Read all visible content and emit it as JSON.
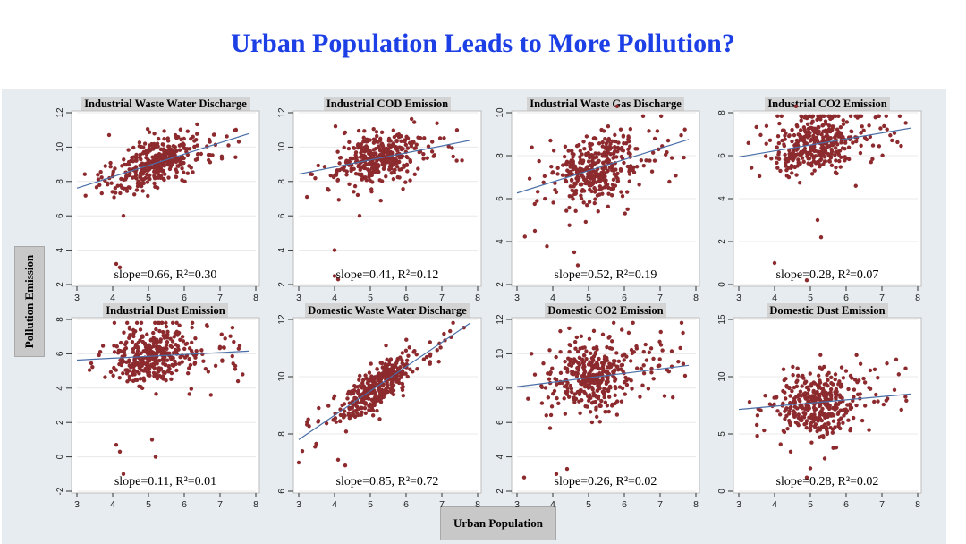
{
  "slide": {
    "title": "Urban Population Leads to More Pollution?"
  },
  "chart_data": [
    {
      "type": "scatter",
      "title": "Industrial Waste Water Discharge",
      "annotation": "slope=0.66, R²=0.30",
      "xlim": [
        3,
        8
      ],
      "xticks": [
        3,
        4,
        5,
        6,
        7,
        8
      ],
      "ylim": [
        2,
        12
      ],
      "yticks": [
        2,
        4,
        6,
        8,
        10,
        12
      ],
      "fit": {
        "slope": 0.66,
        "intercept": 5.63
      },
      "x_center": 5.2,
      "y_center": 9.0,
      "noise": 0.95,
      "outliers": [
        [
          4.1,
          3.2
        ],
        [
          4.2,
          3.0
        ],
        [
          3.9,
          10.7
        ],
        [
          4.3,
          6.0
        ]
      ],
      "color": "#8c2a2e",
      "line_color": "#4a6fa8"
    },
    {
      "type": "scatter",
      "title": "Industrial COD Emission",
      "annotation": "slope=0.41, R²=0.12",
      "xlim": [
        3,
        8
      ],
      "xticks": [
        3,
        4,
        5,
        6,
        7,
        8
      ],
      "ylim": [
        2,
        12
      ],
      "yticks": [
        2,
        4,
        6,
        8,
        10,
        12
      ],
      "fit": {
        "slope": 0.41,
        "intercept": 7.2
      },
      "x_center": 5.2,
      "y_center": 9.3,
      "noise": 1.0,
      "outliers": [
        [
          4.0,
          2.5
        ],
        [
          4.0,
          4.0
        ],
        [
          4.1,
          2.3
        ],
        [
          4.7,
          6.0
        ]
      ],
      "color": "#8c2a2e",
      "line_color": "#4a6fa8"
    },
    {
      "type": "scatter",
      "title": "Industrial Waste Gas Discharge",
      "annotation": "slope=0.52, R²=0.19",
      "xlim": [
        3,
        8
      ],
      "xticks": [
        3,
        4,
        5,
        6,
        7,
        8
      ],
      "ylim": [
        2,
        10
      ],
      "yticks": [
        2,
        4,
        6,
        8,
        10
      ],
      "fit": {
        "slope": 0.52,
        "intercept": 4.7
      },
      "x_center": 5.2,
      "y_center": 7.4,
      "noise": 1.1,
      "outliers": [
        [
          4.6,
          3.5
        ],
        [
          4.7,
          2.9
        ],
        [
          5.8,
          10.3
        ],
        [
          3.5,
          4.5
        ]
      ],
      "color": "#8c2a2e",
      "line_color": "#4a6fa8"
    },
    {
      "type": "scatter",
      "title": "Industrial CO2 Emission",
      "annotation": "slope=0.28, R²=0.07",
      "xlim": [
        3,
        8
      ],
      "xticks": [
        3,
        4,
        5,
        6,
        7,
        8
      ],
      "ylim": [
        0,
        8
      ],
      "yticks": [
        0,
        2,
        4,
        6,
        8
      ],
      "fit": {
        "slope": 0.28,
        "intercept": 5.1
      },
      "x_center": 5.2,
      "y_center": 6.5,
      "noise": 0.9,
      "outliers": [
        [
          4.0,
          1.0
        ],
        [
          5.2,
          3.0
        ],
        [
          5.3,
          2.2
        ],
        [
          4.9,
          0.2
        ],
        [
          4.6,
          8.3
        ]
      ],
      "color": "#8c2a2e",
      "line_color": "#4a6fa8"
    },
    {
      "type": "scatter",
      "title": "Industrial Dust Emission",
      "annotation": "slope=0.11, R²=0.01",
      "xlim": [
        3,
        8
      ],
      "xticks": [
        3,
        4,
        5,
        6,
        7,
        8
      ],
      "ylim": [
        -2,
        8
      ],
      "yticks": [
        -2,
        0,
        2,
        4,
        6,
        8
      ],
      "fit": {
        "slope": 0.11,
        "intercept": 5.3
      },
      "x_center": 5.2,
      "y_center": 5.9,
      "noise": 1.2,
      "outliers": [
        [
          4.1,
          0.7
        ],
        [
          4.2,
          0.3
        ],
        [
          5.2,
          0.0
        ],
        [
          5.1,
          1.0
        ],
        [
          4.3,
          -1.0
        ]
      ],
      "color": "#8c2a2e",
      "line_color": "#4a6fa8"
    },
    {
      "type": "scatter",
      "title": "Domestic Waste Water Discharge",
      "annotation": "slope=0.85, R²=0.72",
      "xlim": [
        3,
        8
      ],
      "xticks": [
        3,
        4,
        5,
        6,
        7,
        8
      ],
      "ylim": [
        6,
        12
      ],
      "yticks": [
        6,
        8,
        10,
        12
      ],
      "fit": {
        "slope": 0.85,
        "intercept": 5.25
      },
      "x_center": 5.2,
      "y_center": 9.7,
      "noise": 0.45,
      "outliers": [
        [
          3.0,
          7.0
        ],
        [
          3.1,
          7.4
        ],
        [
          4.3,
          6.9
        ],
        [
          4.1,
          7.1
        ]
      ],
      "color": "#8c2a2e",
      "line_color": "#4a6fa8"
    },
    {
      "type": "scatter",
      "title": "Domestic CO2 Emission",
      "annotation": "slope=0.26, R²=0.02",
      "xlim": [
        3,
        8
      ],
      "xticks": [
        3,
        4,
        5,
        6,
        7,
        8
      ],
      "ylim": [
        2,
        12
      ],
      "yticks": [
        2,
        4,
        6,
        8,
        10,
        12
      ],
      "fit": {
        "slope": 0.26,
        "intercept": 7.3
      },
      "x_center": 5.2,
      "y_center": 8.7,
      "noise": 1.5,
      "outliers": [
        [
          4.1,
          3.0
        ],
        [
          4.4,
          3.3
        ],
        [
          3.2,
          2.8
        ],
        [
          7.6,
          11.8
        ]
      ],
      "color": "#8c2a2e",
      "line_color": "#4a6fa8"
    },
    {
      "type": "scatter",
      "title": "Domestic Dust Emission",
      "annotation": "slope=0.28, R²=0.02",
      "xlim": [
        3,
        8
      ],
      "xticks": [
        3,
        4,
        5,
        6,
        7,
        8
      ],
      "ylim": [
        0,
        15
      ],
      "yticks": [
        0,
        5,
        10,
        15
      ],
      "fit": {
        "slope": 0.28,
        "intercept": 6.3
      },
      "x_center": 5.2,
      "y_center": 7.8,
      "noise": 2.0,
      "outliers": [
        [
          4.9,
          1.2
        ],
        [
          5.0,
          2.0
        ],
        [
          7.4,
          11.5
        ],
        [
          3.3,
          7.8
        ]
      ],
      "color": "#8c2a2e",
      "line_color": "#4a6fa8"
    }
  ],
  "axes": {
    "ylabel": "Pollution Emission",
    "xlabel": "Urban Population"
  }
}
